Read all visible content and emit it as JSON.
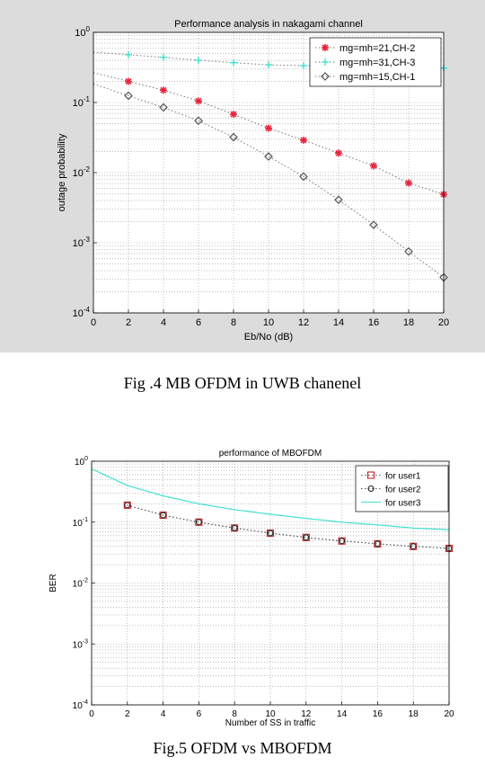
{
  "captions": {
    "fig4": "Fig .4 MB OFDM in UWB chanenel",
    "fig5": "Fig.5 OFDM vs MBOFDM"
  },
  "chart_data": [
    {
      "type": "line",
      "title": "Performance analysis in nakagami channel",
      "xlabel": "Eb/No (dB)",
      "ylabel": "outage probability",
      "xlim": [
        0,
        20
      ],
      "ylim": [
        0.0001,
        1
      ],
      "yscale": "log",
      "grid": true,
      "legend_position": "top-right",
      "background": "#dcdcdc",
      "x_ticks": [
        "0",
        "2",
        "4",
        "6",
        "8",
        "10",
        "12",
        "14",
        "16",
        "18",
        "20"
      ],
      "y_ticks": [
        {
          "base": "10",
          "exp": "0"
        },
        {
          "base": "10",
          "exp": "-1"
        },
        {
          "base": "10",
          "exp": "-2"
        },
        {
          "base": "10",
          "exp": "-3"
        },
        {
          "base": "10",
          "exp": "-4"
        }
      ],
      "x": [
        2,
        4,
        6,
        8,
        10,
        12,
        14,
        16,
        18,
        20
      ],
      "series": [
        {
          "name": "mg=mh=21,CH-2",
          "marker": "star",
          "line": "dotted",
          "color": "#e8213a",
          "values": [
            0.2,
            0.15,
            0.105,
            0.068,
            0.043,
            0.029,
            0.019,
            0.0125,
            0.0071,
            0.0049
          ]
        },
        {
          "name": "mg=mh=31,CH-3",
          "marker": "plus",
          "line": "dotted",
          "color": "#40e0d0",
          "values": [
            0.48,
            0.44,
            0.4,
            0.37,
            0.345,
            0.335,
            0.33,
            0.32,
            0.315,
            0.31
          ]
        },
        {
          "name": "mg=mh=15,CH-1",
          "marker": "diamond",
          "line": "dotted",
          "color": "#555555",
          "values": [
            0.125,
            0.085,
            0.055,
            0.032,
            0.017,
            0.0088,
            0.0041,
            0.0018,
            0.00075,
            0.00032
          ]
        }
      ]
    },
    {
      "type": "line",
      "title": "performance of MBOFDM",
      "xlabel": "Number of SS in traffic",
      "ylabel": "BER",
      "xlim": [
        0,
        20
      ],
      "ylim": [
        0.0001,
        1
      ],
      "yscale": "log",
      "grid": true,
      "legend_position": "top-right",
      "background": "#ffffff",
      "x_ticks": [
        "0",
        "2",
        "4",
        "6",
        "8",
        "10",
        "12",
        "14",
        "16",
        "18",
        "20"
      ],
      "y_ticks": [
        {
          "base": "10",
          "exp": "0"
        },
        {
          "base": "10",
          "exp": "-1"
        },
        {
          "base": "10",
          "exp": "-2"
        },
        {
          "base": "10",
          "exp": "-3"
        },
        {
          "base": "10",
          "exp": "-4"
        }
      ],
      "series": [
        {
          "name": "for user1",
          "marker": "square",
          "line": "dotted",
          "color": "#cc2222",
          "x": [
            2,
            4,
            6,
            8,
            10,
            12,
            14,
            16,
            18,
            20
          ],
          "values": [
            0.19,
            0.13,
            0.1,
            0.08,
            0.066,
            0.056,
            0.049,
            0.044,
            0.04,
            0.037
          ]
        },
        {
          "name": "for user2",
          "marker": "circle",
          "line": "dotted",
          "color": "#222222",
          "x": [
            2,
            4,
            6,
            8,
            10,
            12,
            14,
            16,
            18,
            20
          ],
          "values": [
            0.19,
            0.13,
            0.1,
            0.08,
            0.066,
            0.056,
            0.049,
            0.044,
            0.04,
            0.037
          ]
        },
        {
          "name": "for user3",
          "marker": "none",
          "line": "solid",
          "color": "#40e0d0",
          "x": [
            0,
            2,
            4,
            6,
            8,
            10,
            12,
            14,
            16,
            18,
            20
          ],
          "values": [
            0.75,
            0.4,
            0.27,
            0.2,
            0.16,
            0.135,
            0.115,
            0.1,
            0.09,
            0.08,
            0.075
          ]
        }
      ]
    }
  ]
}
